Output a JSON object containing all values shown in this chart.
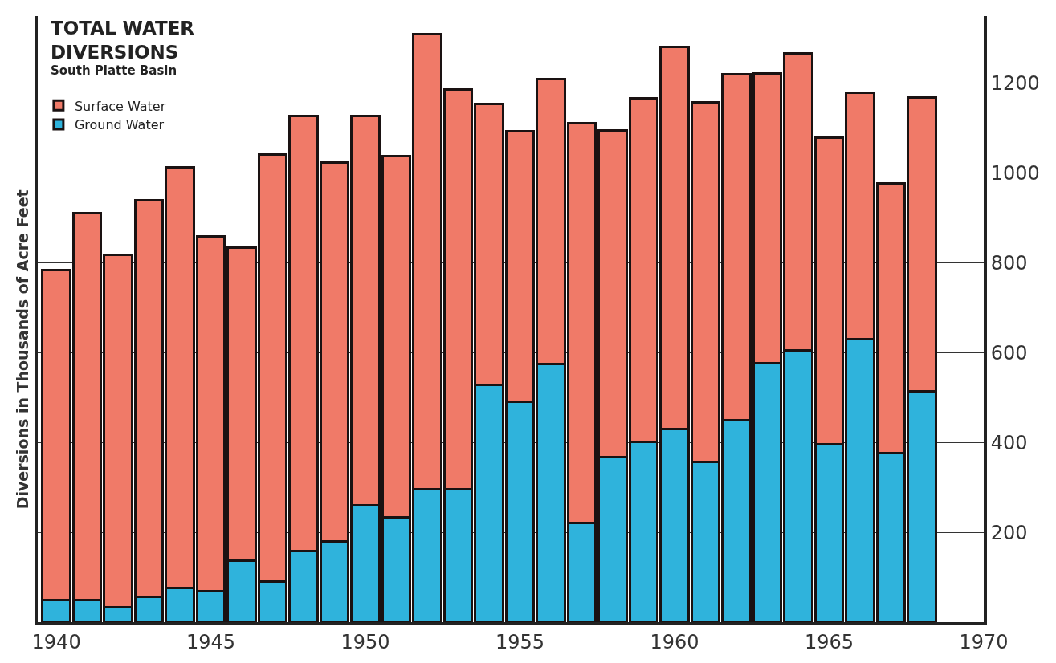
{
  "chart_data": {
    "type": "bar",
    "stacked": true,
    "title": "TOTAL WATER DIVERSIONS",
    "subtitle": "South Platte Basin",
    "ylabel": "Diversions in Thousands of Acre Feet",
    "x": [
      1940,
      1941,
      1942,
      1943,
      1944,
      1945,
      1946,
      1947,
      1948,
      1949,
      1950,
      1951,
      1952,
      1953,
      1954,
      1955,
      1956,
      1957,
      1958,
      1959,
      1960,
      1961,
      1962,
      1963,
      1964,
      1965,
      1966,
      1967,
      1968
    ],
    "series": [
      {
        "name": "Ground Water",
        "color": "#2fb3dc",
        "values": [
          49,
          49,
          33,
          56,
          76,
          69,
          136,
          91,
          158,
          180,
          260,
          234,
          296,
          296,
          528,
          490,
          575,
          221,
          368,
          401,
          430,
          357,
          450,
          577,
          606,
          396,
          630,
          377,
          514
        ]
      },
      {
        "name": "Surface Water",
        "color": "#f07a68",
        "values": [
          735,
          862,
          785,
          884,
          937,
          791,
          699,
          951,
          969,
          844,
          867,
          804,
          1013,
          891,
          627,
          603,
          634,
          890,
          727,
          765,
          852,
          801,
          770,
          645,
          660,
          684,
          550,
          600,
          655
        ]
      }
    ],
    "xlim": [
      1939.4,
      1970
    ],
    "xticks": [
      1940,
      1945,
      1950,
      1955,
      1960,
      1965,
      1970
    ],
    "ylim": [
      0,
      1350
    ],
    "yticks": [
      200,
      400,
      600,
      800,
      1000,
      1200
    ],
    "grid": "y",
    "legend": "top left"
  }
}
